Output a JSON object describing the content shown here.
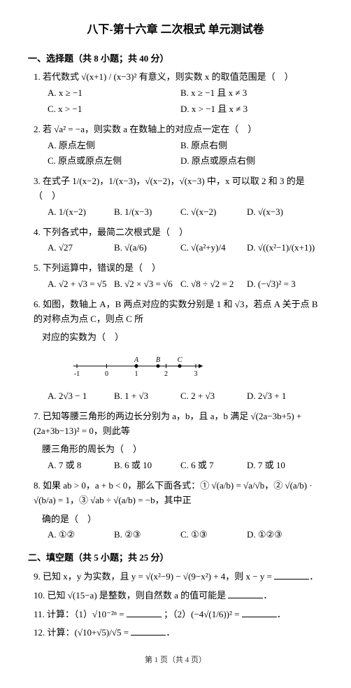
{
  "title": "八下-第十六章 二次根式 单元测试卷",
  "section1": {
    "header": "一、选择题（共 8 小题；共 40 分）",
    "q1": {
      "stem": "1. 若代数式 √(x+1) / (x−3)² 有意义，则实数 x 的取值范围是（　）",
      "a": "A. x ≥ −1",
      "b": "B. x ≥ −1 且 x ≠ 3",
      "c": "C. x > −1",
      "d": "D. x > −1 且 x ≠ 3"
    },
    "q2": {
      "stem": "2. 若 √a² = −a，则实数 a 在数轴上的对应点一定在（　）",
      "a": "A. 原点左侧",
      "b": "B. 原点右侧",
      "c": "C. 原点或原点左侧",
      "d": "D. 原点或原点右侧"
    },
    "q3": {
      "stem": "3. 在式子 1/(x−2)，1/(x−3)，√(x−2)，√(x−3) 中，x 可以取 2 和 3 的是（　）",
      "a": "A. 1/(x−2)",
      "b": "B. 1/(x−3)",
      "c": "C. √(x−2)",
      "d": "D. √(x−3)"
    },
    "q4": {
      "stem": "4. 下列各式中，最简二次根式是（　）",
      "a": "A. √27",
      "b": "B. √(a/6)",
      "c": "C. √(a²+y)/4",
      "d": "D. √((x²−1)/(x+1))"
    },
    "q5": {
      "stem": "5. 下列运算中，错误的是（　）",
      "a": "A. √2 + √3 = √5",
      "b": "B. √2 × √3 = √6",
      "c": "C. √8 ÷ √2 = 2",
      "d": "D. (−√3)² = 3"
    },
    "q6": {
      "stem_line1": "6. 如图，数轴上 A，B 两点对应的实数分别是 1 和 √3，若点 A 关于点 B 的对称点为点 C，则点 C 所",
      "stem_line2": "对应的实数为（　）",
      "a": "A. 2√3 − 1",
      "b": "B. 1 + √3",
      "c": "C. 2 + √3",
      "d": "D. 2√3 + 1"
    },
    "q7": {
      "stem_line1": "7. 已知等腰三角形的两边长分别为 a，b，且 a，b 满足 √(2a−3b+5) + (2a+3b−13)² = 0，则此等",
      "stem_line2": "腰三角形的周长为（　）",
      "a": "A. 7 或 8",
      "b": "B. 6 或 10",
      "c": "C. 6 或 7",
      "d": "D. 7 或 10"
    },
    "q8": {
      "stem_line1": "8. 如果 ab > 0，a + b < 0，那么下面各式：① √(a/b) = √a/√b，② √(a/b) · √(b/a) = 1，③ √ab ÷ √(a/b) = −b，其中正",
      "stem_line2": "确的是（　）",
      "a": "A. ①②",
      "b": "B. ②③",
      "c": "C. ①③",
      "d": "D. ①②③"
    }
  },
  "section2": {
    "header": "二、填空题（共 5 小题；共 25 分）",
    "q9": "9. 已知 x，y 为实数，且 y = √(x²−9) − √(9−x²) + 4，则 x − y = ",
    "q10": "10. 已知 √(15−a) 是整数，则自然数 a 的值可能是 ",
    "q11a": "11. 计算：（1）√10⁻²ⁿ = ",
    "q11b": "；（2）(−4√(1/6))² = ",
    "q12": "12. 计算：(√10+√5)/√5 = "
  },
  "footer": "第 1 页（共 4 页）",
  "numberline": {
    "start": -1,
    "end": 3,
    "ticks": [
      -1,
      0,
      1,
      2,
      3
    ],
    "points": [
      {
        "label": "A",
        "x": 1
      },
      {
        "label": "B",
        "x": 1.73
      },
      {
        "label": "C",
        "x": 2.46
      }
    ],
    "line_color": "#000"
  }
}
